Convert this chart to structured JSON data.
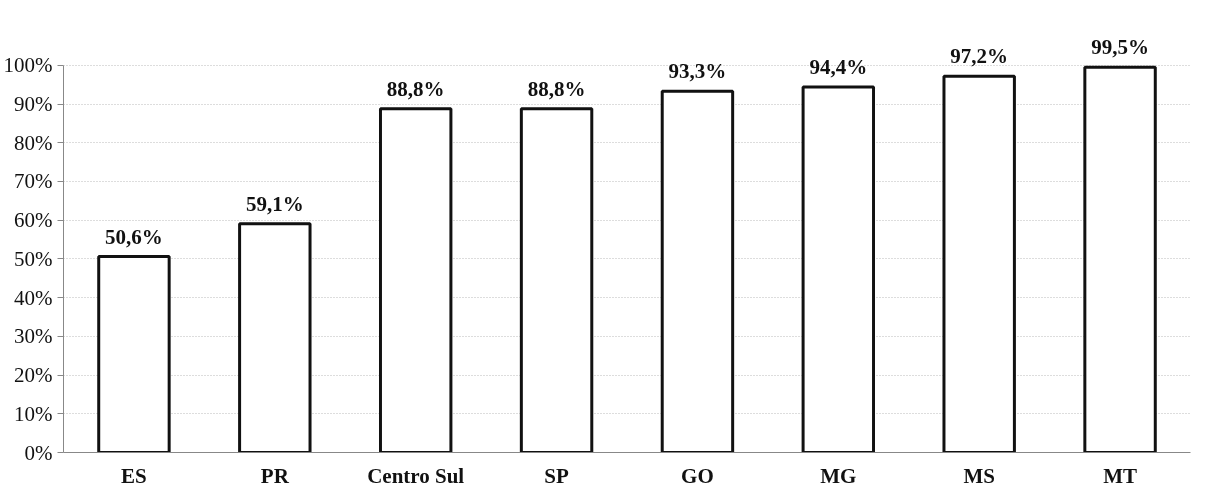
{
  "chart_data": {
    "type": "bar",
    "categories": [
      "ES",
      "PR",
      "Centro Sul",
      "SP",
      "GO",
      "MG",
      "MS",
      "MT"
    ],
    "values": [
      50.6,
      59.1,
      88.8,
      88.8,
      93.3,
      94.4,
      97.2,
      99.5
    ],
    "value_labels": [
      "50,6%",
      "59,1%",
      "88,8%",
      "88,8%",
      "93,3%",
      "94,4%",
      "97,2%",
      "99,5%"
    ],
    "color": "#ffffff",
    "ylim": [
      0,
      100
    ],
    "yticks": [
      {
        "value": 0,
        "label": "0%"
      },
      {
        "value": 10,
        "label": "10%"
      },
      {
        "value": 20,
        "label": "20%"
      },
      {
        "value": 30,
        "label": "30%"
      },
      {
        "value": 40,
        "label": "40%"
      },
      {
        "value": 50,
        "label": "50%"
      },
      {
        "value": 60,
        "label": "60%"
      },
      {
        "value": 70,
        "label": "70%"
      },
      {
        "value": 80,
        "label": "80%"
      },
      {
        "value": 90,
        "label": "90%"
      },
      {
        "value": 100,
        "label": "100%"
      }
    ],
    "grid": "y"
  }
}
